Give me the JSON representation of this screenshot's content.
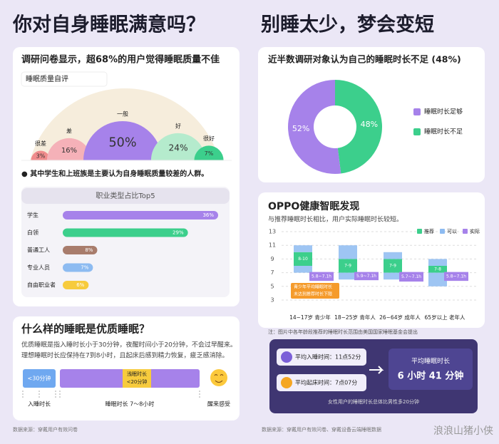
{
  "left": {
    "title": "你对自身睡眠满意吗？",
    "card1": {
      "heading": "调研问卷显示，超68%的用户觉得睡眠质量不佳",
      "note": "● 其中学生和上班族是主要认为自身睡眠质量较差的人群。"
    },
    "card2": {
      "title": "什么样的睡眠是优质睡眠？",
      "lines": [
        "优质睡眠是指入睡时长小于30分钟，夜醒时间小于20分钟，不会过早醒来。",
        "理想睡眠时长应保持在7到8小时，且起床后感到精力恢复，疲乏感消除。"
      ],
      "sleep_onset_box": "<30分钟",
      "light_sleep_box": [
        "浅眠时长",
        "<20分钟"
      ],
      "sleep_onset_label": "入睡时长",
      "duration_label": "睡眠时长 7～8小时",
      "wake_label": "醒来感受"
    },
    "source": "数据来源：穿戴用户有效问卷"
  },
  "right": {
    "title": "别睡太少，梦会变短",
    "note": "注：图片中各年龄段推荐的睡眠时长范围由美国国家睡眠基金会提出",
    "annotation": [
      "青少年平均睡眠时长",
      "未达到推荐时长下限"
    ],
    "summary": {
      "bedtime": "平均入睡时间：11点52分",
      "waketime": "平均起床时间：7点07分",
      "avg_title": "平均睡眠时长",
      "avg_value": "6 小时 41 分钟",
      "footnote": "女性用户的睡眠时长总体比男性多20分钟"
    },
    "source": "数据来源：穿戴用户有效问卷、穿戴设备云端睡眠数据"
  },
  "watermark": "浪浪山猪小侠",
  "chart_data": [
    {
      "type": "bubble",
      "title": "睡眠质量自评",
      "categories": [
        "很差",
        "差",
        "一般",
        "好",
        "很好"
      ],
      "values": [
        3,
        16,
        50,
        24,
        7
      ],
      "value_labels": [
        "3%",
        "16%",
        "50%",
        "24%",
        "7%"
      ],
      "colors": [
        "#f08c8c",
        "#f5b1b8",
        "#a682ea",
        "#b5ebcd",
        "#3ccf8c"
      ]
    },
    {
      "type": "bar",
      "title": "职业类型占比Top5",
      "categories": [
        "学生",
        "白领",
        "普通工人",
        "专业人员",
        "自由职业者"
      ],
      "values": [
        36,
        29,
        8,
        7,
        6
      ],
      "value_labels": [
        "36%",
        "29%",
        "8%",
        "7%",
        "6%"
      ],
      "colors": [
        "#a682ea",
        "#3ccf8c",
        "#a87c6c",
        "#8dbbf1",
        "#f7cb3d"
      ]
    },
    {
      "type": "pie",
      "title": "近半数调研对象认为自己的睡眠时长不足 (48%)",
      "series": [
        {
          "name": "睡眠时长不足",
          "color": "#3ccf8c",
          "value": 48,
          "value_label": "48%"
        },
        {
          "name": "睡眠时长足够",
          "color": "#a682ea",
          "value": 52,
          "value_label": "52%"
        }
      ]
    },
    {
      "type": "range",
      "title": "OPPO健康智眠发现",
      "subtitle": "与推荐睡眠时长相比，用户实际睡眠时长较短。",
      "categories": [
        "14~17岁 青少年",
        "18~25岁 青年人",
        "26~64岁 成年人",
        "65岁以上 老年人"
      ],
      "ylim": [
        3,
        13
      ],
      "yticks": [
        3,
        5,
        7,
        9,
        11,
        13
      ],
      "grid": true,
      "series": [
        {
          "name": "推荐",
          "color": "#3ccf8c",
          "values": [
            [
              8,
              10
            ],
            [
              7,
              9
            ],
            [
              7,
              9
            ],
            [
              7,
              8
            ]
          ],
          "value_labels": [
            "8-10",
            "7-9",
            "7-9",
            "7-8"
          ]
        },
        {
          "name": "可以",
          "color": "#8dbbf1",
          "values": [
            [
              [
                7,
                8
              ],
              [
                10,
                11
              ]
            ],
            [
              [
                6,
                7
              ],
              [
                9,
                11
              ]
            ],
            [
              [
                6,
                7
              ],
              [
                9,
                10
              ]
            ],
            [
              [
                5,
                7
              ],
              [
                8,
                9
              ]
            ]
          ]
        },
        {
          "name": "实际",
          "color": "#a682ea",
          "values": [
            [
              5.8,
              7.1
            ],
            [
              5.9,
              7.1
            ],
            [
              5.7,
              7.1
            ],
            [
              5.8,
              7.1
            ]
          ],
          "value_labels": [
            "5.8~7.1h",
            "5.9~7.1h",
            "5.7~7.1h",
            "5.8~7.1h"
          ]
        }
      ]
    }
  ]
}
